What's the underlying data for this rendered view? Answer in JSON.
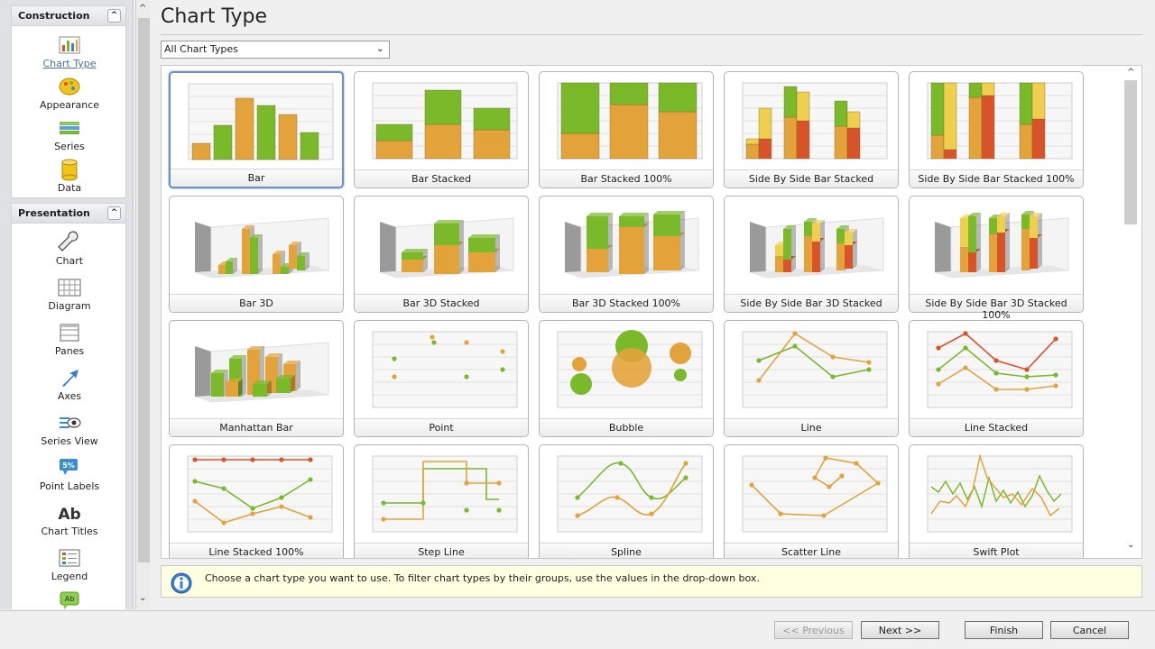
{
  "sidebar": {
    "construction": {
      "title": "Construction",
      "items": [
        {
          "label": "Chart Type",
          "icon": "bar-chart-icon"
        },
        {
          "label": "Appearance",
          "icon": "palette-icon"
        },
        {
          "label": "Series",
          "icon": "series-icon"
        },
        {
          "label": "Data",
          "icon": "database-icon"
        }
      ]
    },
    "presentation": {
      "title": "Presentation",
      "items": [
        {
          "label": "Chart",
          "icon": "wrench-icon"
        },
        {
          "label": "Diagram",
          "icon": "grid-icon"
        },
        {
          "label": "Panes",
          "icon": "panes-icon"
        },
        {
          "label": "Axes",
          "icon": "arrow-icon"
        },
        {
          "label": "Series View",
          "icon": "eye-icon"
        },
        {
          "label": "Point Labels",
          "icon": "percent-label-icon"
        },
        {
          "label": "Chart Titles",
          "icon": "text-ab-icon"
        },
        {
          "label": "Legend",
          "icon": "legend-icon"
        }
      ]
    }
  },
  "page": {
    "title": "Chart Type"
  },
  "filter": {
    "selected": "All Chart Types"
  },
  "gallery": {
    "items": [
      {
        "label": "Bar"
      },
      {
        "label": "Bar Stacked"
      },
      {
        "label": "Bar Stacked 100%"
      },
      {
        "label": "Side By Side Bar Stacked"
      },
      {
        "label": "Side By Side Bar Stacked 100%"
      },
      {
        "label": "Bar 3D"
      },
      {
        "label": "Bar 3D Stacked"
      },
      {
        "label": "Bar 3D Stacked 100%"
      },
      {
        "label": "Side By Side Bar 3D Stacked"
      },
      {
        "label": "Side By Side Bar 3D Stacked 100%"
      },
      {
        "label": "Manhattan Bar"
      },
      {
        "label": "Point"
      },
      {
        "label": "Bubble"
      },
      {
        "label": "Line"
      },
      {
        "label": "Line Stacked"
      },
      {
        "label": "Line Stacked 100%"
      },
      {
        "label": "Step Line"
      },
      {
        "label": "Spline"
      },
      {
        "label": "Scatter Line"
      },
      {
        "label": "Swift Plot"
      }
    ]
  },
  "info": {
    "text": "Choose a chart type you want to use. To filter chart types by their groups, use the values in the drop-down box."
  },
  "buttons": {
    "previous": "<< Previous",
    "next": "Next >>",
    "finish": "Finish",
    "cancel": "Cancel"
  },
  "colors": {
    "green": "#79b92a",
    "orange": "#e3a33a",
    "red": "#d9532a",
    "yellow": "#f0cf4e",
    "selection": "#6d8fc8"
  }
}
